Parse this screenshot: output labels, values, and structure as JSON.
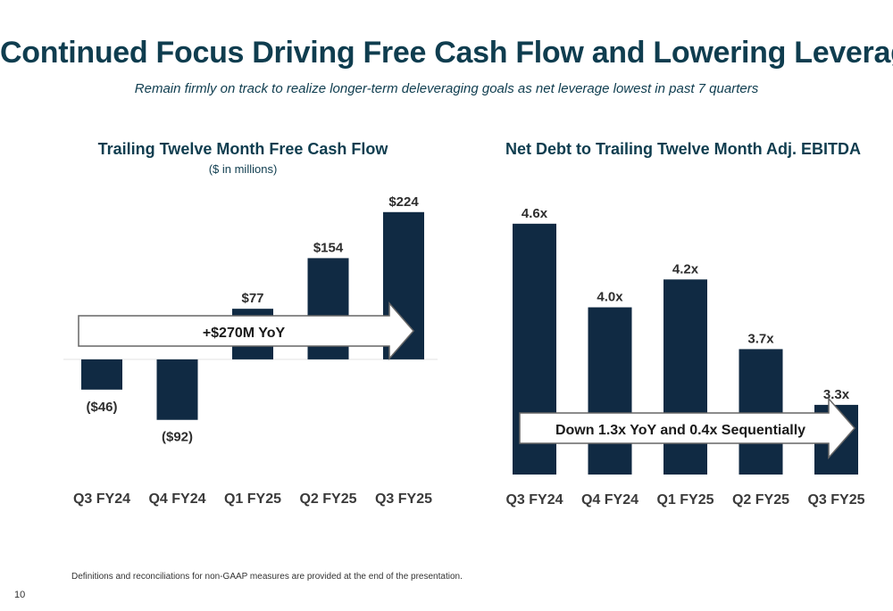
{
  "slide": {
    "title": "Continued Focus Driving Free Cash Flow and Lowering Leverage",
    "subtitle": "Remain firmly on track to realize longer-term deleveraging goals as net leverage lowest in past 7 quarters",
    "footnote": "Definitions and reconciliations for non-GAAP measures are provided at the end of the presentation.",
    "page_number": "10"
  },
  "colors": {
    "bar": "#102a43",
    "title": "#0f3d4f",
    "label": "#2e2e2e",
    "arrow_stroke": "#666666"
  },
  "chart_data": [
    {
      "type": "bar",
      "title": "Trailing Twelve Month Free Cash Flow",
      "subtitle": "($ in millions)",
      "categories": [
        "Q3 FY24",
        "Q4 FY24",
        "Q1 FY25",
        "Q2 FY25",
        "Q3 FY25"
      ],
      "values": [
        -46,
        -92,
        77,
        154,
        224
      ],
      "data_labels": [
        "($46)",
        "($92)",
        "$77",
        "$154",
        "$224"
      ],
      "annotation": "+$270M YoY",
      "ylim": [
        -110,
        240
      ],
      "baseline_visible": true,
      "grid": false
    },
    {
      "type": "bar",
      "title": "Net Debt to Trailing Twelve Month Adj. EBITDA",
      "categories": [
        "Q3 FY24",
        "Q4 FY24",
        "Q1 FY25",
        "Q2 FY25",
        "Q3 FY25"
      ],
      "values": [
        4.6,
        4.0,
        4.2,
        3.7,
        3.3
      ],
      "data_labels": [
        "4.6x",
        "4.0x",
        "4.2x",
        "3.7x",
        "3.3x"
      ],
      "annotation": "Down 1.3x YoY and 0.4x Sequentially",
      "ylim": [
        2.8,
        4.65
      ],
      "grid": false
    }
  ]
}
